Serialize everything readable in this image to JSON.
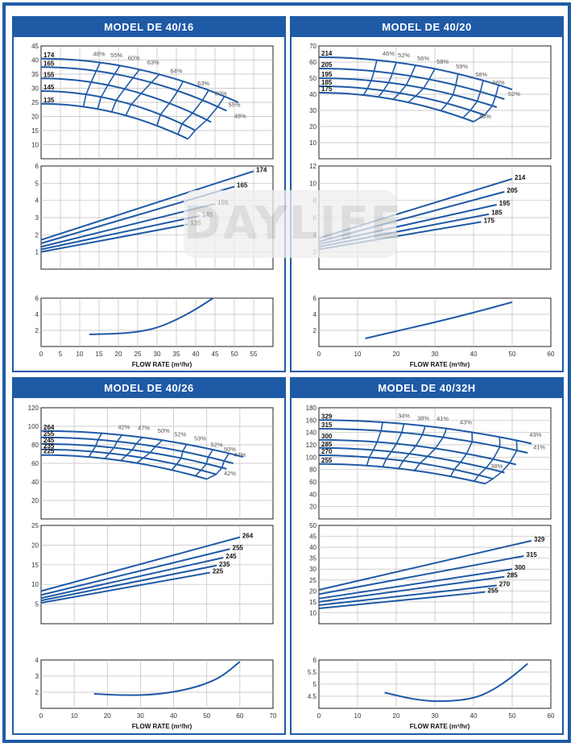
{
  "brand": {
    "watermark": "DAYLIFE",
    "color": "#1f5aa6"
  },
  "models": [
    {
      "title": "MODEL DE 40/16",
      "head": {
        "y_ticks": [
          10,
          15,
          20,
          25,
          30,
          35,
          40,
          45
        ],
        "ylim": [
          5,
          45
        ],
        "x_range": [
          0,
          55
        ],
        "impellers": [
          {
            "label": "174",
            "y0": 40.5,
            "x1": 51,
            "y1": 25
          },
          {
            "label": "165",
            "y0": 37.5,
            "x1": 48,
            "y1": 22
          },
          {
            "label": "155",
            "y0": 33.5,
            "x1": 44,
            "y1": 18
          },
          {
            "label": "145",
            "y0": 29.0,
            "x1": 40,
            "y1": 15
          },
          {
            "label": "135",
            "y0": 24.5,
            "x1": 38,
            "y1": 12
          }
        ],
        "efficiency_labels": [
          {
            "text": "48%",
            "x": 15,
            "y": 41.5
          },
          {
            "text": "55%",
            "x": 19.5,
            "y": 41
          },
          {
            "text": "60%",
            "x": 24,
            "y": 40
          },
          {
            "text": "63%",
            "x": 29,
            "y": 38.5
          },
          {
            "text": "64%",
            "x": 35,
            "y": 35.5
          },
          {
            "text": "63%",
            "x": 42,
            "y": 31
          },
          {
            "text": "60%",
            "x": 46.5,
            "y": 27.5
          },
          {
            "text": "55%",
            "x": 50,
            "y": 23.5
          },
          {
            "text": "48%",
            "x": 51.5,
            "y": 19.5
          }
        ]
      },
      "power": {
        "y_ticks": [
          1,
          2,
          3,
          4,
          5,
          6
        ],
        "ylim": [
          0,
          6
        ],
        "lines": [
          {
            "label": "174",
            "y0": 1.7,
            "x1": 55,
            "y1": 5.7
          },
          {
            "label": "165",
            "y0": 1.5,
            "x1": 50,
            "y1": 4.8
          },
          {
            "label": "155",
            "y0": 1.3,
            "x1": 45,
            "y1": 3.8
          },
          {
            "label": "145",
            "y0": 1.15,
            "x1": 41,
            "y1": 3.1
          },
          {
            "label": "135",
            "y0": 1.0,
            "x1": 38,
            "y1": 2.6
          }
        ]
      },
      "npsh": {
        "y_ticks": [
          2,
          4,
          6
        ],
        "ylim": [
          0,
          6
        ],
        "points": [
          [
            12.5,
            1.5
          ],
          [
            20,
            1.6
          ],
          [
            25,
            1.8
          ],
          [
            30,
            2.3
          ],
          [
            35,
            3.3
          ],
          [
            40,
            4.6
          ],
          [
            44.5,
            6
          ]
        ]
      },
      "x_ticks": [
        0,
        5,
        10,
        15,
        20,
        25,
        30,
        35,
        40,
        45,
        50,
        55
      ],
      "xlim": [
        0,
        60
      ],
      "xlabel": "FLOW RATE (m³/hr)"
    },
    {
      "title": "MODEL DE 40/20",
      "head": {
        "y_ticks": [
          10,
          20,
          30,
          40,
          50,
          60,
          70
        ],
        "ylim": [
          0,
          70
        ],
        "x_range": [
          0,
          50
        ],
        "impellers": [
          {
            "label": "214",
            "y0": 63,
            "x1": 50,
            "y1": 43
          },
          {
            "label": "205",
            "y0": 56,
            "x1": 48,
            "y1": 37
          },
          {
            "label": "195",
            "y0": 50,
            "x1": 46,
            "y1": 32
          },
          {
            "label": "185",
            "y0": 45,
            "x1": 43,
            "y1": 27
          },
          {
            "label": "175",
            "y0": 41,
            "x1": 40,
            "y1": 23
          }
        ],
        "efficiency_labels": [
          {
            "text": "46%",
            "x": 18,
            "y": 64
          },
          {
            "text": "52%",
            "x": 22,
            "y": 63
          },
          {
            "text": "56%",
            "x": 27,
            "y": 61
          },
          {
            "text": "58%",
            "x": 32,
            "y": 59
          },
          {
            "text": "59%",
            "x": 37,
            "y": 56
          },
          {
            "text": "58%",
            "x": 42,
            "y": 51
          },
          {
            "text": "56%",
            "x": 46.5,
            "y": 46
          },
          {
            "text": "52%",
            "x": 50.5,
            "y": 39
          },
          {
            "text": "46%",
            "x": 43,
            "y": 25
          }
        ]
      },
      "power": {
        "y_ticks": [
          2,
          4,
          6,
          8,
          10,
          12
        ],
        "ylim": [
          0,
          12
        ],
        "lines": [
          {
            "label": "214",
            "y0": 3.6,
            "x1": 50,
            "y1": 10.5
          },
          {
            "label": "205",
            "y0": 3.2,
            "x1": 48,
            "y1": 9.0
          },
          {
            "label": "195",
            "y0": 2.9,
            "x1": 46,
            "y1": 7.5
          },
          {
            "label": "185",
            "y0": 2.6,
            "x1": 44,
            "y1": 6.4
          },
          {
            "label": "175",
            "y0": 2.3,
            "x1": 42,
            "y1": 5.5
          }
        ]
      },
      "npsh": {
        "y_ticks": [
          2,
          4,
          6
        ],
        "ylim": [
          0,
          6
        ],
        "points": [
          [
            12,
            1.0
          ],
          [
            20,
            1.9
          ],
          [
            30,
            3.0
          ],
          [
            40,
            4.2
          ],
          [
            50,
            5.5
          ]
        ]
      },
      "x_ticks": [
        0,
        10,
        20,
        30,
        40,
        50,
        60
      ],
      "xlim": [
        0,
        60
      ],
      "xlabel": "FLOW RATE (m³/hr)"
    },
    {
      "title": "MODEL DE 40/26",
      "head": {
        "y_ticks": [
          20,
          40,
          60,
          80,
          100,
          120
        ],
        "ylim": [
          0,
          120
        ],
        "x_range": [
          0,
          60
        ],
        "impellers": [
          {
            "label": "264",
            "y0": 95,
            "x1": 61,
            "y1": 67
          },
          {
            "label": "255",
            "y0": 88,
            "x1": 58,
            "y1": 60
          },
          {
            "label": "245",
            "y0": 81,
            "x1": 56,
            "y1": 54
          },
          {
            "label": "235",
            "y0": 75,
            "x1": 53,
            "y1": 48
          },
          {
            "label": "225",
            "y0": 69,
            "x1": 50,
            "y1": 43
          }
        ],
        "efficiency_labels": [
          {
            "text": "42%",
            "x": 25,
            "y": 97
          },
          {
            "text": "47%",
            "x": 31,
            "y": 96
          },
          {
            "text": "50%",
            "x": 37,
            "y": 93
          },
          {
            "text": "52%",
            "x": 42,
            "y": 89
          },
          {
            "text": "53%",
            "x": 48,
            "y": 85
          },
          {
            "text": "52%",
            "x": 53,
            "y": 78
          },
          {
            "text": "50%",
            "x": 57,
            "y": 73
          },
          {
            "text": "47%",
            "x": 60,
            "y": 67
          },
          {
            "text": "42%",
            "x": 57,
            "y": 47
          }
        ]
      },
      "power": {
        "y_ticks": [
          5,
          10,
          15,
          20,
          25
        ],
        "ylim": [
          0,
          25
        ],
        "lines": [
          {
            "label": "264",
            "y0": 8.3,
            "x1": 60,
            "y1": 22
          },
          {
            "label": "255",
            "y0": 7.3,
            "x1": 57,
            "y1": 19
          },
          {
            "label": "245",
            "y0": 6.5,
            "x1": 55,
            "y1": 16.8
          },
          {
            "label": "235",
            "y0": 5.9,
            "x1": 53,
            "y1": 14.8
          },
          {
            "label": "225",
            "y0": 5.3,
            "x1": 51,
            "y1": 13
          }
        ]
      },
      "npsh": {
        "y_ticks": [
          2,
          3,
          4
        ],
        "ylim": [
          1,
          4
        ],
        "points": [
          [
            16,
            1.9
          ],
          [
            25,
            1.8
          ],
          [
            35,
            1.85
          ],
          [
            45,
            2.2
          ],
          [
            52,
            2.7
          ],
          [
            56,
            3.2
          ],
          [
            60,
            3.9
          ]
        ]
      },
      "x_ticks": [
        0,
        10,
        20,
        30,
        40,
        50,
        60,
        70
      ],
      "xlim": [
        0,
        70
      ],
      "xlabel": "FLOW RATE (m³/hr)"
    },
    {
      "title": "MODEL DE 40/32H",
      "head": {
        "y_ticks": [
          20,
          40,
          60,
          80,
          100,
          120,
          140,
          160,
          180
        ],
        "ylim": [
          0,
          180
        ],
        "x_range": [
          0,
          55
        ],
        "impellers": [
          {
            "label": "329",
            "y0": 160,
            "x1": 55,
            "y1": 122
          },
          {
            "label": "315",
            "y0": 146,
            "x1": 54,
            "y1": 107
          },
          {
            "label": "300",
            "y0": 128,
            "x1": 51,
            "y1": 88
          },
          {
            "label": "285",
            "y0": 115,
            "x1": 48,
            "y1": 75
          },
          {
            "label": "270",
            "y0": 103,
            "x1": 45,
            "y1": 65
          },
          {
            "label": "255",
            "y0": 89,
            "x1": 43,
            "y1": 57
          }
        ],
        "efficiency_labels": [
          {
            "text": "34%",
            "x": 22,
            "y": 164
          },
          {
            "text": "38%",
            "x": 27,
            "y": 160
          },
          {
            "text": "41%",
            "x": 32,
            "y": 159
          },
          {
            "text": "43%",
            "x": 38,
            "y": 153
          },
          {
            "text": "43%",
            "x": 56,
            "y": 133
          },
          {
            "text": "41%",
            "x": 57,
            "y": 113
          },
          {
            "text": "38%",
            "x": 46,
            "y": 82
          }
        ]
      },
      "power": {
        "y_ticks": [
          10,
          15,
          20,
          25,
          30,
          35,
          40,
          45,
          50
        ],
        "ylim": [
          5,
          50
        ],
        "lines": [
          {
            "label": "329",
            "y0": 20.5,
            "x1": 55,
            "y1": 43
          },
          {
            "label": "315",
            "y0": 18.5,
            "x1": 53,
            "y1": 36
          },
          {
            "label": "300",
            "y0": 16.5,
            "x1": 50,
            "y1": 30
          },
          {
            "label": "285",
            "y0": 15,
            "x1": 48,
            "y1": 26.5
          },
          {
            "label": "270",
            "y0": 13.5,
            "x1": 46,
            "y1": 22.5
          },
          {
            "label": "255",
            "y0": 12,
            "x1": 43,
            "y1": 19.5
          }
        ]
      },
      "npsh": {
        "y_ticks": [
          4.5,
          5.0,
          5.5,
          6.0
        ],
        "ylim": [
          4.0,
          6.0
        ],
        "points": [
          [
            17,
            4.65
          ],
          [
            25,
            4.35
          ],
          [
            32,
            4.27
          ],
          [
            40,
            4.4
          ],
          [
            45,
            4.75
          ],
          [
            50,
            5.3
          ],
          [
            54,
            5.85
          ]
        ]
      },
      "x_ticks": [
        0,
        10,
        20,
        30,
        40,
        50,
        60
      ],
      "xlim": [
        0,
        60
      ],
      "xlabel": "FLOW RATE (m³/hr)"
    }
  ]
}
